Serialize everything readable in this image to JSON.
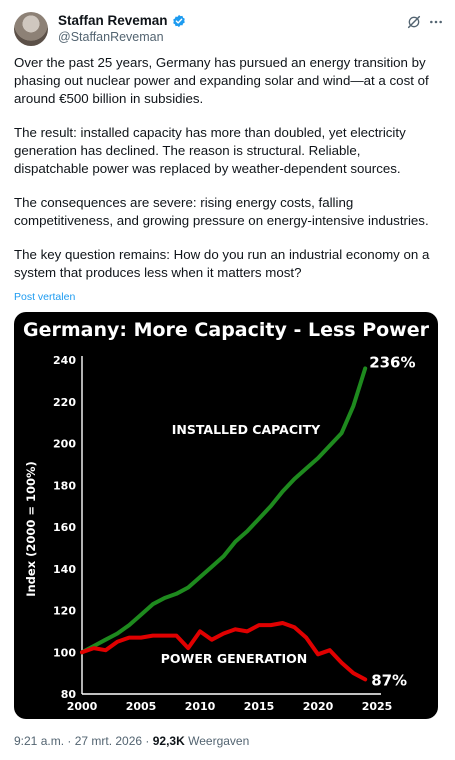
{
  "author": {
    "name": "Staffan Reveman",
    "handle": "@StaffanReveman"
  },
  "tweet": {
    "paragraphs": [
      "Over the past 25 years, Germany has pursued an energy transition by phasing out nuclear power and expanding solar and wind—at a cost of around €500 billion in subsidies.",
      "The result: installed capacity has more than doubled, yet electricity generation has declined. The reason is structural. Reliable, dispatchable power was replaced by weather-dependent sources.",
      "The consequences are severe: rising energy costs, falling competitiveness, and growing pressure on energy-intensive industries.",
      "The key question remains: How do you run an industrial economy on a system that produces less when it matters most?"
    ],
    "translate_label": "Post vertalen"
  },
  "icons": {
    "verified": "verified-badge-icon",
    "grok": "grok-icon",
    "more": "more-options-icon"
  },
  "colors": {
    "link": "#1d9bf0",
    "verified": "#1d9bf0",
    "capacity": "#1e8a1e",
    "generation": "#e00000"
  },
  "chart_data": {
    "type": "line",
    "title": "Germany: More Capacity - Less Power",
    "ylabel": "Index (2000 = 100%)",
    "xlabel": "",
    "xlim": [
      2000,
      2025
    ],
    "ylim": [
      80,
      240
    ],
    "xticks": [
      "2000",
      "2005",
      "2010",
      "2015",
      "2020",
      "2025"
    ],
    "yticks": [
      "80",
      "100",
      "120",
      "140",
      "160",
      "180",
      "200",
      "220",
      "240"
    ],
    "grid": false,
    "series": [
      {
        "name": "INSTALLED CAPACITY",
        "end_label": "236%",
        "x": [
          2000,
          2001,
          2002,
          2003,
          2004,
          2005,
          2006,
          2007,
          2008,
          2009,
          2010,
          2011,
          2012,
          2013,
          2014,
          2015,
          2016,
          2017,
          2018,
          2019,
          2020,
          2021,
          2022,
          2023,
          2024
        ],
        "values": [
          100,
          103,
          106,
          109,
          113,
          118,
          123,
          126,
          128,
          131,
          136,
          141,
          146,
          153,
          158,
          164,
          170,
          177,
          183,
          188,
          193,
          199,
          205,
          218,
          236
        ]
      },
      {
        "name": "POWER GENERATION",
        "end_label": "87%",
        "x": [
          2000,
          2001,
          2002,
          2003,
          2004,
          2005,
          2006,
          2007,
          2008,
          2009,
          2010,
          2011,
          2012,
          2013,
          2014,
          2015,
          2016,
          2017,
          2018,
          2019,
          2020,
          2021,
          2022,
          2023,
          2024
        ],
        "values": [
          100,
          102,
          101,
          105,
          107,
          107,
          108,
          108,
          108,
          102,
          110,
          106,
          109,
          111,
          110,
          113,
          113,
          114,
          112,
          107,
          99,
          101,
          95,
          90,
          87
        ]
      }
    ]
  },
  "meta": {
    "time": "9:21 a.m.",
    "separator": " · ",
    "date": "27 mrt. 2026",
    "views_count": "92,3K",
    "views_label": " Weergaven"
  }
}
